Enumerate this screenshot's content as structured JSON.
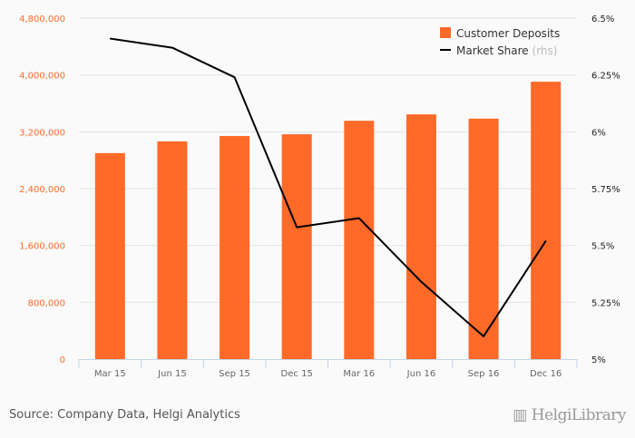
{
  "chart_data": {
    "type": "bar+line",
    "categories": [
      "Mar 15",
      "Jun 15",
      "Sep 15",
      "Dec 15",
      "Mar 16",
      "Jun 16",
      "Sep 16",
      "Dec 16"
    ],
    "series": [
      {
        "name": "Customer Deposits",
        "type": "bar",
        "axis": "left",
        "color": "#ff6a28",
        "values": [
          2900000,
          3065000,
          3140000,
          3165000,
          3355000,
          3445000,
          3385000,
          3905000
        ]
      },
      {
        "name": "Market Share",
        "suffix": "(rhs)",
        "type": "line",
        "axis": "right",
        "color": "#000000",
        "values": [
          6.41,
          6.37,
          6.24,
          5.58,
          5.62,
          5.34,
          5.1,
          5.52
        ]
      }
    ],
    "left_axis": {
      "ylim": [
        0,
        4800000
      ],
      "ticks": [
        0,
        800000,
        1600000,
        2400000,
        3200000,
        4000000,
        4800000
      ],
      "tick_labels": [
        "0",
        "800,000",
        "1,600,000",
        "2,400,000",
        "3,200,000",
        "4,000,000",
        "4,800,000"
      ]
    },
    "right_axis": {
      "ylim": [
        5,
        6.5
      ],
      "ticks": [
        5,
        5.25,
        5.5,
        5.75,
        6,
        6.25,
        6.5
      ],
      "tick_labels": [
        "5%",
        "5.25%",
        "5.5%",
        "5.75%",
        "6%",
        "6.25%",
        "6.5%"
      ]
    },
    "legend_position": "top-right",
    "grid": true
  },
  "footer": {
    "source": "Source: Company Data, Helgi Analytics",
    "logo": "HelgiLibrary"
  }
}
